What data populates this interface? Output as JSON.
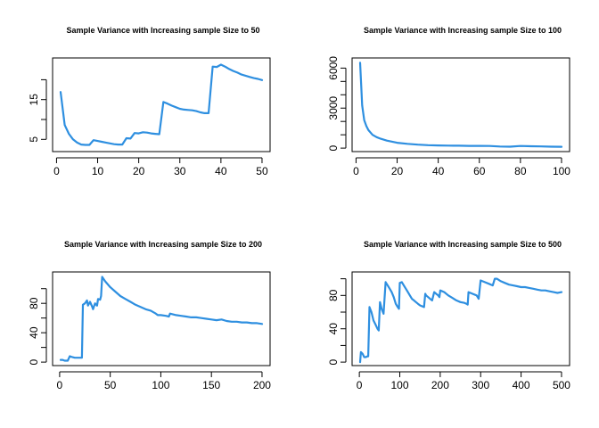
{
  "chart_data": [
    {
      "type": "line",
      "title": "Sample Variance with Increasing sample Size to 50",
      "xlabel": "",
      "ylabel": "",
      "xlim": [
        1,
        50
      ],
      "ylim": [
        2.8,
        24.6
      ],
      "xticks": [
        0,
        10,
        20,
        30,
        40,
        50
      ],
      "yticks": [
        5,
        15
      ],
      "y_tick_minor": [
        10,
        20
      ],
      "grid": false,
      "color": "#2e8fe0",
      "x": [
        1,
        2,
        3,
        4,
        5,
        6,
        7,
        8,
        9,
        10,
        11,
        12,
        13,
        14,
        15,
        16,
        17,
        18,
        19,
        20,
        21,
        22,
        23,
        24,
        25,
        26,
        27,
        28,
        29,
        30,
        31,
        32,
        33,
        34,
        35,
        36,
        37,
        38,
        39,
        40,
        41,
        42,
        43,
        44,
        45,
        46,
        47,
        48,
        49,
        50
      ],
      "y": [
        16.9,
        8.6,
        6.4,
        5.0,
        4.2,
        3.7,
        3.6,
        3.6,
        4.8,
        4.6,
        4.4,
        4.2,
        4.0,
        3.8,
        3.7,
        3.7,
        5.3,
        5.2,
        6.6,
        6.5,
        6.8,
        6.7,
        6.5,
        6.4,
        6.3,
        14.4,
        14.0,
        13.5,
        13.1,
        12.7,
        12.5,
        12.4,
        12.3,
        12.1,
        11.8,
        11.6,
        11.6,
        23.3,
        23.2,
        23.8,
        23.3,
        22.7,
        22.2,
        21.8,
        21.3,
        21.0,
        20.7,
        20.4,
        20.2,
        19.9
      ]
    },
    {
      "type": "line",
      "title": "Sample Variance with Increasing sample Size to 100",
      "xlabel": "",
      "ylabel": "",
      "xlim": [
        2,
        100
      ],
      "ylim": [
        0,
        6500
      ],
      "xticks": [
        0,
        20,
        40,
        60,
        80,
        100
      ],
      "yticks": [
        0,
        1000,
        2000,
        3000,
        4000,
        5000,
        6000
      ],
      "ytick_labels": [
        "0",
        "",
        "",
        "3000",
        "",
        "",
        "6000"
      ],
      "grid": false,
      "color": "#2e8fe0",
      "x": [
        2,
        3,
        4,
        5,
        6,
        8,
        10,
        12,
        15,
        20,
        25,
        30,
        35,
        40,
        45,
        50,
        55,
        60,
        65,
        70,
        75,
        80,
        85,
        90,
        95,
        100
      ],
      "y": [
        6400,
        3200,
        2100,
        1650,
        1350,
        1000,
        820,
        700,
        560,
        400,
        320,
        260,
        220,
        200,
        190,
        180,
        170,
        165,
        160,
        120,
        110,
        160,
        140,
        130,
        110,
        100
      ]
    },
    {
      "type": "line",
      "title": "Sample Variance with Increasing sample Size to 200",
      "xlabel": "",
      "ylabel": "",
      "xlim": [
        1,
        200
      ],
      "ylim": [
        0,
        118
      ],
      "xticks": [
        0,
        50,
        100,
        150,
        200
      ],
      "yticks": [
        0,
        20,
        40,
        60,
        80,
        100
      ],
      "ytick_labels": [
        "0",
        "",
        "40",
        "",
        "80",
        ""
      ],
      "grid": false,
      "color": "#2e8fe0",
      "x": [
        1,
        3,
        5,
        8,
        10,
        12,
        15,
        18,
        20,
        22,
        23,
        25,
        27,
        28,
        30,
        32,
        33,
        35,
        37,
        38,
        40,
        41,
        42,
        45,
        50,
        55,
        60,
        65,
        70,
        75,
        80,
        85,
        90,
        95,
        97,
        100,
        105,
        108,
        109,
        115,
        120,
        125,
        130,
        135,
        140,
        145,
        150,
        155,
        160,
        165,
        170,
        175,
        180,
        185,
        190,
        195,
        200
      ],
      "y": [
        3,
        3,
        2,
        2,
        8,
        7,
        6,
        6,
        6,
        6,
        78,
        80,
        84,
        77,
        82,
        76,
        72,
        80,
        77,
        86,
        85,
        90,
        116,
        110,
        102,
        96,
        90,
        86,
        82,
        78,
        75,
        72,
        70,
        66,
        64,
        64,
        63,
        62,
        66,
        64,
        63,
        62,
        61,
        61,
        60,
        59,
        58,
        57,
        58,
        56,
        55,
        55,
        54,
        54,
        53,
        53,
        52
      ]
    },
    {
      "type": "line",
      "title": "Sample Variance with Increasing sample Size to 500",
      "xlabel": "",
      "ylabel": "",
      "xlim": [
        2,
        500
      ],
      "ylim": [
        0,
        104
      ],
      "xticks": [
        0,
        100,
        200,
        300,
        400,
        500
      ],
      "yticks": [
        0,
        20,
        40,
        60,
        80,
        100
      ],
      "ytick_labels": [
        "0",
        "",
        "40",
        "",
        "80",
        ""
      ],
      "grid": false,
      "color": "#2e8fe0",
      "x": [
        2,
        4,
        8,
        12,
        16,
        20,
        22,
        25,
        30,
        35,
        40,
        45,
        48,
        50,
        51,
        55,
        60,
        65,
        70,
        75,
        80,
        85,
        90,
        95,
        98,
        100,
        105,
        110,
        115,
        120,
        125,
        130,
        135,
        140,
        145,
        150,
        160,
        163,
        165,
        170,
        175,
        180,
        185,
        190,
        195,
        198,
        200,
        210,
        220,
        230,
        240,
        250,
        260,
        265,
        268,
        270,
        280,
        290,
        295,
        300,
        310,
        320,
        330,
        335,
        340,
        350,
        360,
        370,
        380,
        390,
        400,
        410,
        420,
        430,
        440,
        450,
        460,
        470,
        480,
        490,
        500
      ],
      "y": [
        0,
        12,
        10,
        6,
        6,
        7,
        7,
        66,
        60,
        50,
        45,
        40,
        38,
        60,
        72,
        64,
        58,
        96,
        92,
        88,
        84,
        78,
        70,
        66,
        64,
        95,
        96,
        92,
        88,
        84,
        80,
        76,
        74,
        72,
        70,
        68,
        66,
        82,
        80,
        78,
        76,
        74,
        84,
        82,
        80,
        78,
        86,
        84,
        80,
        77,
        74,
        72,
        71,
        70,
        69,
        84,
        82,
        80,
        76,
        98,
        96,
        94,
        92,
        100,
        100,
        97,
        95,
        93,
        92,
        91,
        90,
        90,
        89,
        88,
        87,
        86,
        86,
        85,
        84,
        83,
        84
      ]
    }
  ]
}
